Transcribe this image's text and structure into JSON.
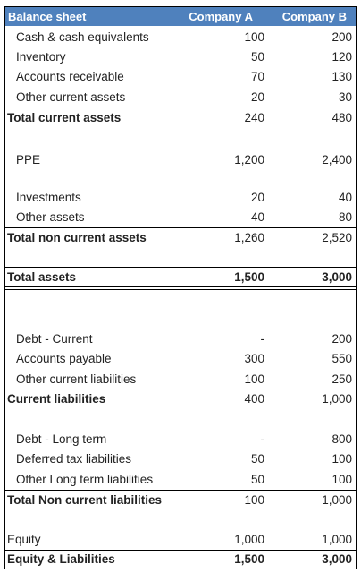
{
  "header": {
    "title": "Balance sheet",
    "col_a": "Company A",
    "col_b": "Company B"
  },
  "rows": [
    {
      "label": "Cash & cash equivalents",
      "a": "100",
      "b": "200"
    },
    {
      "label": "Inventory",
      "a": "50",
      "b": "120"
    },
    {
      "label": "Accounts receivable",
      "a": "70",
      "b": "130"
    },
    {
      "label": "Other current assets",
      "a": "20",
      "b": "30"
    },
    {
      "label": "Total current assets",
      "a": "240",
      "b": "480"
    },
    {
      "label": "PPE",
      "a": "1,200",
      "b": "2,400"
    },
    {
      "label": "Investments",
      "a": "20",
      "b": "40"
    },
    {
      "label": "Other assets",
      "a": "40",
      "b": "80"
    },
    {
      "label": "Total non current assets",
      "a": "1,260",
      "b": "2,520"
    },
    {
      "label": "Total assets",
      "a": "1,500",
      "b": "3,000"
    },
    {
      "label": "Debt - Current",
      "a": "-",
      "b": "200"
    },
    {
      "label": "Accounts payable",
      "a": "300",
      "b": "550"
    },
    {
      "label": "Other current liabilities",
      "a": "100",
      "b": "250"
    },
    {
      "label": "Current liabilities",
      "a": "400",
      "b": "1,000"
    },
    {
      "label": "Debt - Long term",
      "a": "-",
      "b": "800"
    },
    {
      "label": "Deferred tax liabilities",
      "a": "50",
      "b": "100"
    },
    {
      "label": "Other Long term liabilities",
      "a": "50",
      "b": "100"
    },
    {
      "label": "Total Non current liabilities",
      "a": "100",
      "b": "1,000"
    },
    {
      "label": "Equity",
      "a": "1,000",
      "b": "1,000"
    },
    {
      "label": "Equity & Liabilities",
      "a": "1,500",
      "b": "3,000"
    }
  ]
}
